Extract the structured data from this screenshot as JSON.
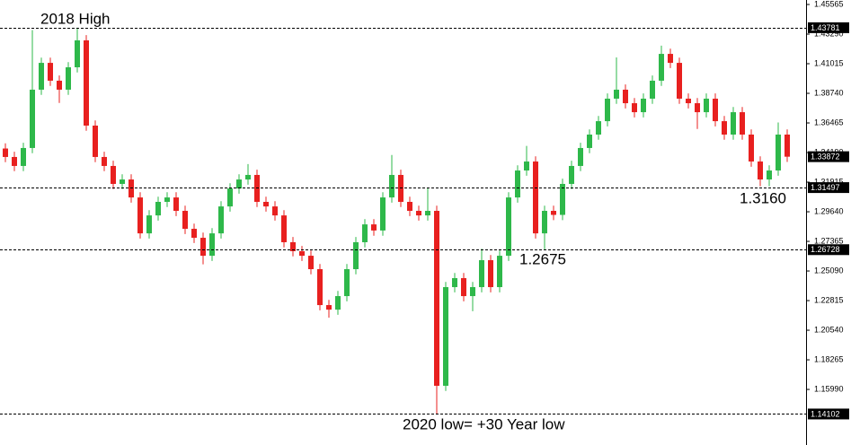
{
  "chart_data": {
    "type": "candlestick",
    "open": [
      1.345,
      1.3385,
      1.3316,
      1.3454,
      1.3902,
      1.4108,
      1.3971,
      1.3902,
      1.4074,
      1.4281,
      1.3626,
      1.3385,
      1.3316,
      1.3178,
      1.3212,
      1.3074,
      1.2798,
      1.2936,
      1.304,
      1.3074,
      1.2971,
      1.2833,
      1.2764,
      1.2626,
      1.2798,
      1.3005,
      1.3143,
      1.3212,
      1.3247,
      1.304,
      1.3005,
      1.2936,
      1.273,
      1.2661,
      1.2626,
      1.2523,
      1.2247,
      1.2212,
      1.2316,
      1.2523,
      1.273,
      1.2867,
      1.282,
      1.3074,
      1.3247,
      1.304,
      1.2971,
      1.2936,
      1.2971,
      1.1627,
      1.2385,
      1.2454,
      1.2316,
      1.2385,
      1.2592,
      1.2385,
      1.2626,
      1.3074,
      1.3281,
      1.335,
      1.2798,
      1.2971,
      1.294,
      1.3178,
      1.3316,
      1.3454,
      1.3557,
      1.366,
      1.3833,
      1.3902,
      1.3798,
      1.3729,
      1.3833,
      1.3971,
      1.4177,
      1.4108,
      1.3833,
      1.3798,
      1.3729,
      1.3833,
      1.366,
      1.3557,
      1.3729,
      1.3557,
      1.335,
      1.3212,
      1.3281,
      1.3557
    ],
    "high": [
      1.349,
      1.3425,
      1.3494,
      1.436,
      1.4148,
      1.4148,
      1.4011,
      1.4114,
      1.4378,
      1.4321,
      1.3666,
      1.3425,
      1.3356,
      1.3252,
      1.3252,
      1.3114,
      1.2976,
      1.308,
      1.3114,
      1.3114,
      1.3011,
      1.2873,
      1.2804,
      1.2838,
      1.3045,
      1.3183,
      1.3252,
      1.333,
      1.3287,
      1.308,
      1.3045,
      1.2976,
      1.277,
      1.2701,
      1.2666,
      1.2563,
      1.2287,
      1.2356,
      1.2563,
      1.277,
      1.2907,
      1.2907,
      1.3114,
      1.34,
      1.3287,
      1.308,
      1.3011,
      1.315,
      1.3011,
      1.2425,
      1.2494,
      1.2494,
      1.2425,
      1.268,
      1.2632,
      1.2666,
      1.3114,
      1.3321,
      1.347,
      1.339,
      1.3011,
      1.3011,
      1.3218,
      1.3356,
      1.3494,
      1.3597,
      1.37,
      1.3873,
      1.415,
      1.3942,
      1.3838,
      1.3873,
      1.4011,
      1.424,
      1.4217,
      1.4148,
      1.3873,
      1.3838,
      1.3873,
      1.3873,
      1.37,
      1.3769,
      1.3769,
      1.3597,
      1.339,
      1.3321,
      1.365,
      1.3597
    ],
    "low": [
      1.3345,
      1.3276,
      1.3276,
      1.3414,
      1.3862,
      1.3931,
      1.38,
      1.3862,
      1.4034,
      1.3586,
      1.3345,
      1.3276,
      1.3138,
      1.3138,
      1.3034,
      1.2758,
      1.2758,
      1.2896,
      1.3,
      1.2931,
      1.2793,
      1.2724,
      1.256,
      1.2586,
      1.2758,
      1.2965,
      1.3103,
      1.3172,
      1.3,
      1.2965,
      1.2896,
      1.269,
      1.2621,
      1.2586,
      1.2483,
      1.2207,
      1.215,
      1.2172,
      1.2276,
      1.2483,
      1.269,
      1.278,
      1.278,
      1.3034,
      1.3,
      1.2931,
      1.2896,
      1.2896,
      1.141,
      1.1587,
      1.2345,
      1.2276,
      1.22,
      1.2345,
      1.2345,
      1.2345,
      1.2586,
      1.3034,
      1.3241,
      1.2758,
      1.2675,
      1.29,
      1.29,
      1.3138,
      1.3276,
      1.3414,
      1.3517,
      1.362,
      1.3793,
      1.3758,
      1.3689,
      1.3689,
      1.3793,
      1.3931,
      1.4068,
      1.3793,
      1.3758,
      1.36,
      1.3689,
      1.362,
      1.3517,
      1.3517,
      1.3517,
      1.331,
      1.316,
      1.316,
      1.3241,
      1.3347
    ],
    "close": [
      1.3385,
      1.3316,
      1.3454,
      1.3902,
      1.4108,
      1.3971,
      1.3902,
      1.4074,
      1.4281,
      1.3626,
      1.3385,
      1.3316,
      1.3178,
      1.3212,
      1.3074,
      1.2798,
      1.2936,
      1.304,
      1.3074,
      1.2971,
      1.2833,
      1.2764,
      1.2626,
      1.2798,
      1.3005,
      1.3143,
      1.3212,
      1.3247,
      1.304,
      1.3005,
      1.2936,
      1.273,
      1.2661,
      1.2626,
      1.2523,
      1.2247,
      1.2212,
      1.2316,
      1.2523,
      1.273,
      1.2867,
      1.282,
      1.3074,
      1.3247,
      1.304,
      1.2971,
      1.2936,
      1.2971,
      1.1627,
      1.2385,
      1.2454,
      1.2316,
      1.2385,
      1.2592,
      1.2385,
      1.2626,
      1.3074,
      1.3281,
      1.335,
      1.2798,
      1.2971,
      1.294,
      1.3178,
      1.3316,
      1.3454,
      1.3557,
      1.366,
      1.3833,
      1.3902,
      1.3798,
      1.3729,
      1.3833,
      1.3971,
      1.4177,
      1.4108,
      1.3833,
      1.3798,
      1.3729,
      1.3833,
      1.366,
      1.3557,
      1.3729,
      1.3557,
      1.335,
      1.3212,
      1.3281,
      1.3557,
      1.3387
    ],
    "up_color": "#2eb84a",
    "down_color": "#e8201f",
    "ylim": [
      1.1172,
      1.4591
    ],
    "yticks": [
      1.45565,
      {
        "value": 1.4329,
        "label": "1.43290"
      },
      1.41015,
      {
        "value": 1.3874,
        "label": "1.38740"
      },
      1.36465,
      {
        "value": 1.3419,
        "label": "1.34190"
      },
      1.31915,
      {
        "value": 1.2964,
        "label": "1.29640"
      },
      1.27365,
      {
        "value": 1.2509,
        "label": "1.25090"
      },
      1.22815,
      {
        "value": 1.2054,
        "label": "1.20540"
      },
      1.18265,
      {
        "value": 1.1599,
        "label": "1.15990"
      }
    ],
    "levels": [
      1.43781,
      1.31497,
      1.26728,
      1.14102
    ],
    "current_price": 1.33872,
    "annotations": [
      "2018 High",
      "1.2675",
      "1.3160",
      "2020 low= +30 Year low"
    ]
  }
}
